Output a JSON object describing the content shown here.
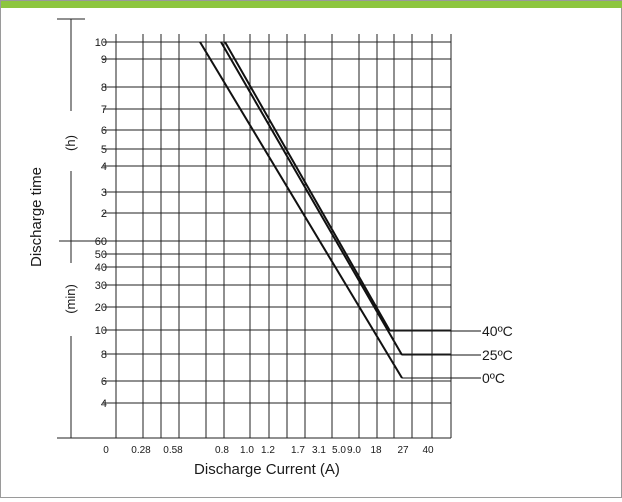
{
  "header_bar_color": "#8dc63f",
  "chart_data": {
    "type": "line",
    "title": "",
    "xlabel": "Discharge Current (A)",
    "ylabel": "Discharge time",
    "x_ticks": [
      "0",
      "0.28",
      "0.58",
      "0.8",
      "1.0",
      "1.2",
      "1.7",
      "3.1",
      "5.0",
      "9.0",
      "18",
      "27",
      "40"
    ],
    "y_ticks_hours": [
      "10",
      "9",
      "8",
      "7",
      "6",
      "5",
      "4",
      "3",
      "2"
    ],
    "y_ticks_minutes": [
      "60",
      "50",
      "40",
      "30",
      "20",
      "10",
      "8",
      "6",
      "4"
    ],
    "y_unit_hours": "(h)",
    "y_unit_minutes": "(min)",
    "grid": true,
    "legend": "right",
    "series": [
      {
        "name": "40ºC",
        "x": [
          0.8,
          27
        ],
        "y_start_h": 10,
        "y_end_min": 10
      },
      {
        "name": "25ºC",
        "x": [
          0.8,
          27
        ],
        "y_start_h": 10,
        "y_end_min": 8
      },
      {
        "name": "0ºC",
        "x": [
          0.8,
          27
        ],
        "y_start_h": 10,
        "y_end_min": 6
      }
    ]
  }
}
